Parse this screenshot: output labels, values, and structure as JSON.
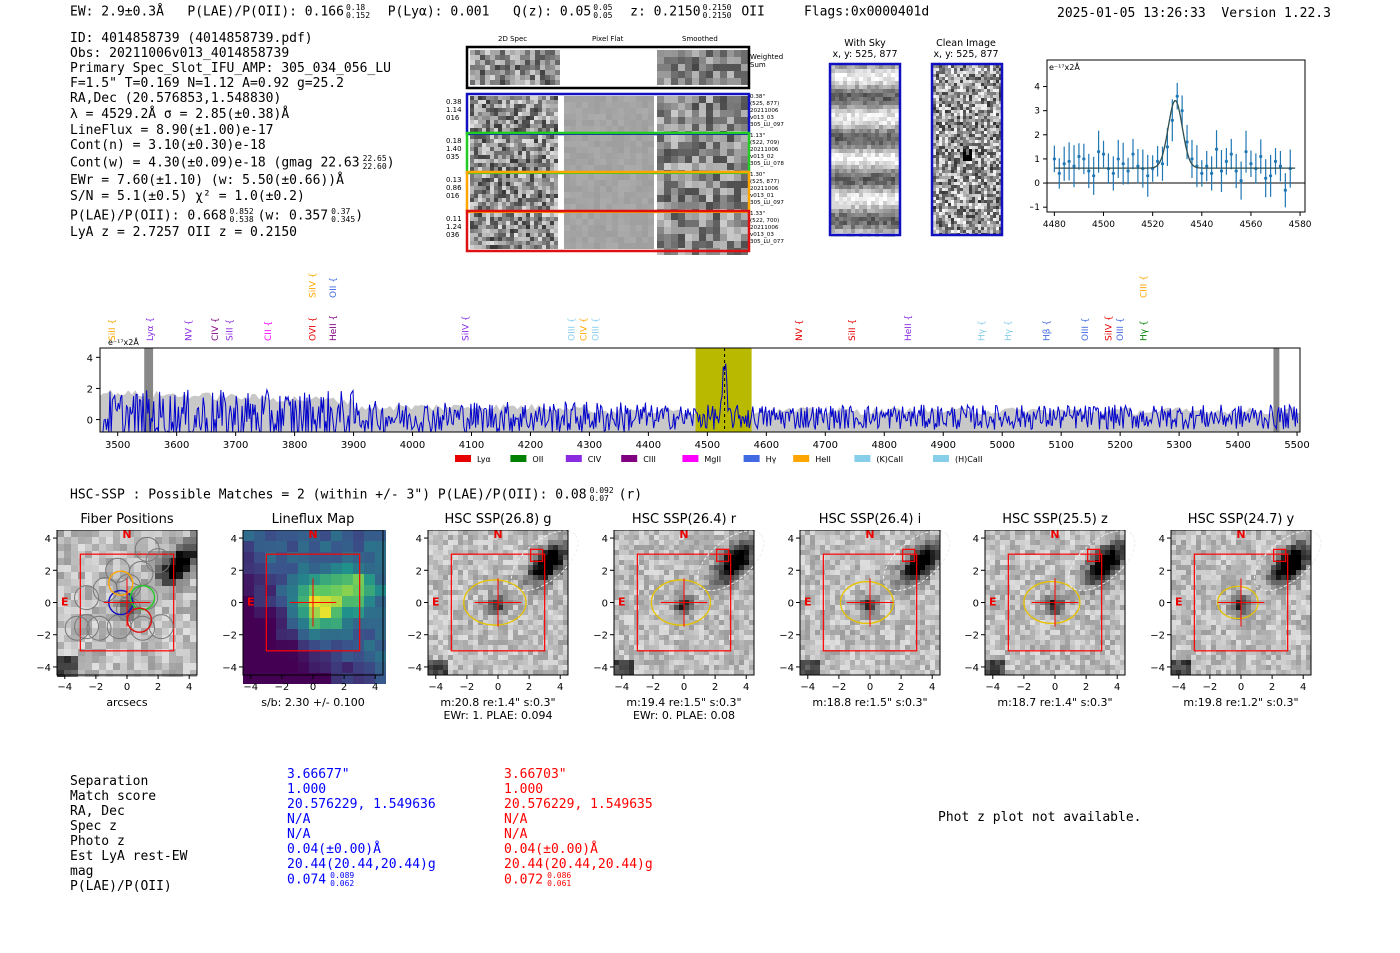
{
  "header": {
    "ew": "EW: 2.9±0.3Å",
    "plae_label": "P(LAE)/P(OII): 0.166",
    "plae_hi": "0.18",
    "plae_lo": "0.152",
    "plya": "P(Lyα): 0.001",
    "qz_label": "Q(z): 0.05",
    "qz_hi": "0.05",
    "qz_lo": "0.05",
    "z_label": "z: 0.2150",
    "z_hi": "0.2150",
    "z_lo": "0.2150",
    "z_line": "OII",
    "flags": "Flags:0x0000401d",
    "timestamp": "2025-01-05 13:26:33",
    "version": "Version 1.22.3"
  },
  "info": {
    "l1": "ID: 4014858739 (4014858739.pdf)",
    "l2": "Obs: 20211006v013_4014858739",
    "l3": "Primary Spec_Slot_IFU_AMP: 305_034_056_LU",
    "l4": "F=1.5\"  T=0.169  N=1.12  A=0.92  g=25.2",
    "l5": "RA,Dec (20.576853,1.548830)",
    "l6": "λ = 4529.2Å   σ = 2.85(±0.38)Å",
    "l7": "LineFlux = 8.90(±1.00)e-17",
    "l8": "Cont(n) = 3.10(±0.30)e-18",
    "l9": "Cont(w) = 4.30(±0.09)e-18 (gmag 22.63",
    "l9_hi": "22.65",
    "l9_lo": "22.60",
    "l9_end": ")",
    "l10": "EWr = 7.60(±1.10) (w: 5.50(±0.66))Å",
    "l11": "S/N = 5.1(±0.5)  χ² = 1.0(±0.2)",
    "l12": "P(LAE)/P(OII): 0.668",
    "l12_hi": "0.852",
    "l12_lo": "0.538",
    "l12_mid": "(w: 0.357",
    "l12_hi2": "0.37",
    "l12_lo2": "0.345",
    "l12_end": ")",
    "l13": "LyA z = 2.7257   OII z = 0.2150"
  },
  "cutouts": {
    "col1": "2D Spec",
    "col2": "Pixel Flat",
    "col3": "Smoothed",
    "weighted": "Weighted\nSum",
    "rows": [
      {
        "left": "0.38\n1.14\n016",
        "right": "0.38\"\n(525, 877)\n20211006\nv013_03\n305_LU_097",
        "color": "#1010c0"
      },
      {
        "left": "0.18\n1.40\n035",
        "right": "1.13\"\n(522, 709)\n20211006\nv013_02\n305_LU_078",
        "color": "#22cc22"
      },
      {
        "left": "0.13\n0.86\n016",
        "right": "1.30\"\n(525, 877)\n20211006\nv013_01\n305_LU_097",
        "color": "#ffa500"
      },
      {
        "left": "0.11\n1.24\n036",
        "right": "1.33\"\n(522, 700)\n20211006\nv013_03\n305_LU_077",
        "color": "#dd1111"
      }
    ]
  },
  "sky": {
    "with_sky_title": "With Sky",
    "with_sky_xy": "x, y: 525, 877",
    "clean_title": "Clean Image",
    "clean_xy": "x, y: 525, 877"
  },
  "chart_data": [
    {
      "type": "line",
      "name": "line-fit",
      "ylabel_unit": "e⁻¹⁷x2Å",
      "xlim": [
        4477,
        4582
      ],
      "ylim": [
        -1.2,
        5.1
      ],
      "x_ticks": [
        4480,
        4500,
        4520,
        4540,
        4560,
        4580
      ],
      "y_ticks": [
        -1,
        0,
        1,
        2,
        3,
        4
      ],
      "series": [
        {
          "name": "data",
          "x": [
            4480,
            4482,
            4484,
            4486,
            4488,
            4490,
            4492,
            4494,
            4496,
            4498,
            4500,
            4502,
            4504,
            4506,
            4508,
            4510,
            4512,
            4514,
            4516,
            4518,
            4520,
            4522,
            4524,
            4526,
            4528,
            4530,
            4532,
            4534,
            4536,
            4538,
            4540,
            4542,
            4544,
            4546,
            4548,
            4550,
            4552,
            4554,
            4556,
            4558,
            4560,
            4562,
            4564,
            4566,
            4568,
            4570,
            4572,
            4574,
            4576
          ],
          "values": [
            1.0,
            0.4,
            0.8,
            0.9,
            0.7,
            1.1,
            1.0,
            0.5,
            0.3,
            1.3,
            1.2,
            0.6,
            0.4,
            1.0,
            0.8,
            0.5,
            1.2,
            0.7,
            0.6,
            0.3,
            0.6,
            0.9,
            0.8,
            1.5,
            2.6,
            3.6,
            3.0,
            1.7,
            1.0,
            0.7,
            0.4,
            0.7,
            0.4,
            1.4,
            0.5,
            0.9,
            1.2,
            0.5,
            0.1,
            1.3,
            0.8,
            0.6,
            1.1,
            0.2,
            0.3,
            0.9,
            0.7,
            -0.3,
            0.6
          ]
        },
        {
          "name": "fit",
          "center": 4529.2,
          "sigma": 2.85,
          "continuum": 0.62,
          "amplitude": 2.8
        }
      ]
    },
    {
      "type": "line",
      "name": "full-spectrum",
      "ylabel_unit": "e⁻¹⁷x2Å",
      "xlim": [
        3470,
        5505
      ],
      "ylim": [
        -0.8,
        4.6
      ],
      "x_ticks": [
        3500,
        3600,
        3700,
        3800,
        3900,
        4000,
        4100,
        4200,
        4300,
        4400,
        4500,
        4600,
        4700,
        4800,
        4900,
        5000,
        5100,
        5200,
        5300,
        5400,
        5500
      ],
      "y_ticks": [
        0,
        2,
        4
      ],
      "highlight": [
        4480,
        4575
      ],
      "line_marker": 4529.2,
      "bad_regions": [
        [
          3545,
          3560
        ],
        [
          5460,
          5470
        ]
      ],
      "legend": [
        {
          "label": "Lyα",
          "color": "#e60000"
        },
        {
          "label": "OII",
          "color": "#008000"
        },
        {
          "label": "CIV",
          "color": "#8a2be2"
        },
        {
          "label": "CIII",
          "color": "#800080"
        },
        {
          "label": "MgII",
          "color": "#ff00ff"
        },
        {
          "label": "Hγ",
          "color": "#4169e1"
        },
        {
          "label": "HeII",
          "color": "#ffa500"
        },
        {
          "label": "(K)CaII",
          "color": "#87ceeb"
        },
        {
          "label": "(H)CaII",
          "color": "#87ceeb"
        }
      ],
      "line_labels": [
        {
          "label": "SiII",
          "x": 3490,
          "color": "#ffa500",
          "level": 0
        },
        {
          "label": "Lyα",
          "x": 3555,
          "color": "#8a2be2",
          "level": 0
        },
        {
          "label": "NV",
          "x": 3620,
          "color": "#8a2be2",
          "level": 0
        },
        {
          "label": "CIV",
          "x": 3665,
          "color": "#800080",
          "level": 0
        },
        {
          "label": "SiII",
          "x": 3690,
          "color": "#8a2be2",
          "level": 0
        },
        {
          "label": "CII",
          "x": 3755,
          "color": "#ff00ff",
          "level": 0
        },
        {
          "label": "OVI",
          "x": 3830,
          "color": "#e60000",
          "level": 0
        },
        {
          "label": "SiIV",
          "x": 3830,
          "color": "#ffa500",
          "level": 1
        },
        {
          "label": "OII",
          "x": 3865,
          "color": "#4169e1",
          "level": 1
        },
        {
          "label": "HeII",
          "x": 3865,
          "color": "#800080",
          "level": 0
        },
        {
          "label": "SiIV",
          "x": 4090,
          "color": "#8a2be2",
          "level": 0
        },
        {
          "label": "OIII",
          "x": 4270,
          "color": "#87ceeb",
          "level": 0
        },
        {
          "label": "CIV",
          "x": 4290,
          "color": "#ffa500",
          "level": 0
        },
        {
          "label": "OIII",
          "x": 4310,
          "color": "#87ceeb",
          "level": 0
        },
        {
          "label": "NV",
          "x": 4655,
          "color": "#e60000",
          "level": 0
        },
        {
          "label": "SiII",
          "x": 4745,
          "color": "#e60000",
          "level": 0
        },
        {
          "label": "HeII",
          "x": 4840,
          "color": "#8a2be2",
          "level": 0
        },
        {
          "label": "Hγ",
          "x": 4965,
          "color": "#87ceeb",
          "level": 0
        },
        {
          "label": "Hγ",
          "x": 5010,
          "color": "#87ceeb",
          "level": 0
        },
        {
          "label": "Hβ",
          "x": 5075,
          "color": "#4169e1",
          "level": 0
        },
        {
          "label": "OIII",
          "x": 5140,
          "color": "#4169e1",
          "level": 0
        },
        {
          "label": "SiIV",
          "x": 5180,
          "color": "#e60000",
          "level": 0
        },
        {
          "label": "OIII",
          "x": 5200,
          "color": "#4169e1",
          "level": 0
        },
        {
          "label": "CIII",
          "x": 5240,
          "color": "#ffa500",
          "level": 1
        },
        {
          "label": "Hγ",
          "x": 5240,
          "color": "#008000",
          "level": 0
        }
      ]
    }
  ],
  "hsc": {
    "title": "HSC-SSP : Possible Matches = 2 (within +/- 3\")  P(LAE)/P(OII): 0.08",
    "title_hi": "0.092",
    "title_lo": "0.07",
    "title_end": "(r)",
    "panels": [
      {
        "title": "Fiber Positions",
        "cap1": "arcsecs",
        "cap2": ""
      },
      {
        "title": "Lineflux Map",
        "cap1": "s/b: 2.30 +/- 0.100",
        "cap2": ""
      },
      {
        "title": "HSC SSP(26.8) g",
        "cap1": "m:20.8  re:1.4\"  s:0.3\"",
        "cap2": "EWr: 1. PLAE: 0.094"
      },
      {
        "title": "HSC SSP(26.4) r",
        "cap1": "m:19.4  re:1.5\"  s:0.3\"",
        "cap2": "EWr: 0. PLAE: 0.08"
      },
      {
        "title": "HSC SSP(26.4) i",
        "cap1": "m:18.8  re:1.5\"  s:0.3\"",
        "cap2": ""
      },
      {
        "title": "HSC SSP(25.5) z",
        "cap1": "m:18.7  re:1.4\"  s:0.3\"",
        "cap2": ""
      },
      {
        "title": "HSC SSP(24.7) y",
        "cap1": "m:19.8  re:1.2\"  s:0.3\"",
        "cap2": ""
      }
    ],
    "axis_ticks": [
      "−4",
      "−2",
      "0",
      "2",
      "4"
    ],
    "north": "N",
    "east": "E"
  },
  "matches": {
    "labels": [
      "Separation",
      "Match score",
      "RA, Dec",
      "Spec z",
      "Photo z",
      "Est LyA rest-EW",
      "mag",
      "P(LAE)/P(OII)"
    ],
    "m1": [
      "3.66677\"",
      "1.000",
      "20.576229, 1.549636",
      "N/A",
      "N/A",
      "0.04(±0.00)Å",
      "20.44(20.44,20.44)g",
      "0.074"
    ],
    "m1_hi": "0.089",
    "m1_lo": "0.062",
    "m2": [
      "3.66703\"",
      "1.000",
      "20.576229, 1.549635",
      "N/A",
      "N/A",
      "0.04(±0.00)Å",
      "20.44(20.44,20.44)g",
      "0.072"
    ],
    "m2_hi": "0.086",
    "m2_lo": "0.061",
    "photz": "Phot z plot not available."
  },
  "colors": {
    "spectrum": "#0000cc",
    "highlight": "#b9b900",
    "fit": "#1f77b4",
    "ellipse": "#e6c200",
    "box": "#ff0000"
  }
}
